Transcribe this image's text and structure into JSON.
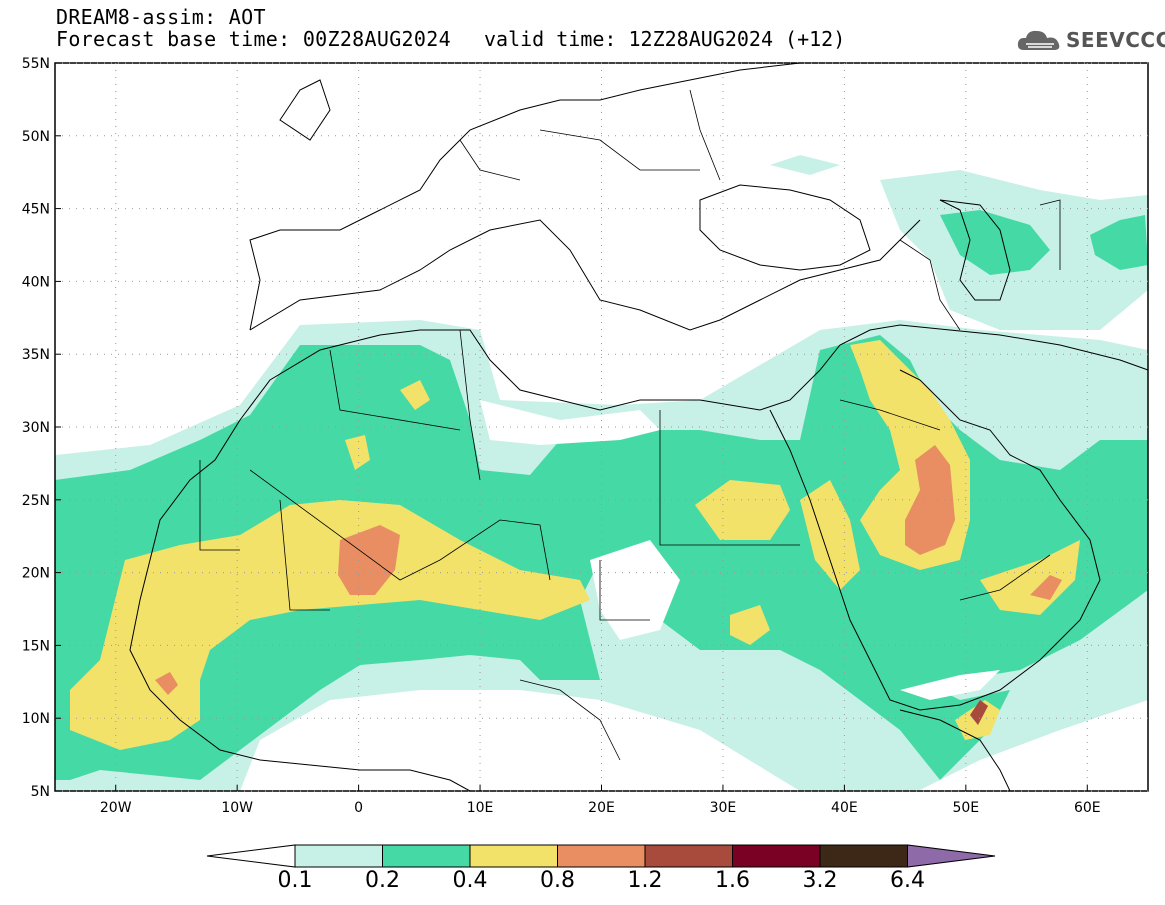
{
  "header": {
    "title": "DREAM8-assim: AOT",
    "base_time": "Forecast base time: 00Z28AUG2024",
    "valid_time": "valid time: 12Z28AUG2024 (+12)"
  },
  "logo": {
    "text": "SEEVCCC",
    "icon": "cloud-icon"
  },
  "map": {
    "lat_labels": [
      "55N",
      "50N",
      "45N",
      "40N",
      "35N",
      "30N",
      "25N",
      "20N",
      "15N",
      "10N",
      "5N"
    ],
    "lon_labels": [
      "20W",
      "10W",
      "0",
      "10E",
      "20E",
      "30E",
      "40E",
      "50E",
      "60E"
    ],
    "lat_range": [
      5,
      55
    ],
    "lon_range": [
      -25,
      65
    ],
    "grid": "dotted"
  },
  "colorbar": {
    "labels": [
      "0.1",
      "0.2",
      "0.4",
      "0.8",
      "1.2",
      "1.6",
      "3.2",
      "6.4"
    ],
    "colors": [
      "#ffffff",
      "#c7f0e6",
      "#45d9a6",
      "#f2e26a",
      "#e88e62",
      "#a84a3c",
      "#7a0024",
      "#3d2716",
      "#8f6aa8"
    ]
  }
}
